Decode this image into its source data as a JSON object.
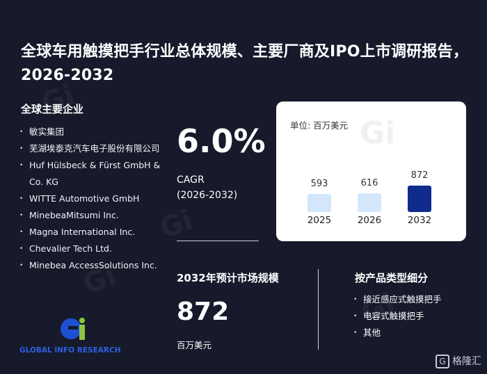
{
  "title": "全球车用触摸把手行业总体规模、主要厂商及IPO上市调研报告，2026-2032",
  "companies_section": {
    "heading": "全球主要企业",
    "items": [
      "敏实集团",
      "芜湖埃泰克汽车电子股份有限公司",
      "Huf Hülsbeck & Fürst GmbH & Co. KG",
      "WITTE Automotive GmbH",
      "MinebeaMitsumi Inc.",
      "Magna International Inc.",
      "Chevalier Tech Ltd.",
      "Minebea AccessSolutions Inc."
    ]
  },
  "cagr": {
    "value": "6.0%",
    "label": "CAGR",
    "period": "(2026-2032)"
  },
  "market_size": {
    "heading": "2032年预计市场规模",
    "value": "872",
    "unit": "百万美元"
  },
  "product_types": {
    "heading": "按产品类型细分",
    "items": [
      "接近感应式触摸把手",
      "电容式触摸把手",
      "其他"
    ]
  },
  "chart_data": {
    "type": "bar",
    "unit_label": "单位: 百万美元",
    "categories": [
      "2025",
      "2026",
      "2032"
    ],
    "values": [
      593,
      616,
      872
    ],
    "value_labels": [
      "593",
      "616",
      "872"
    ],
    "colors": [
      "#d3e6fb",
      "#d3e6fb",
      "#0f2b8c"
    ]
  },
  "logo": {
    "text": "GLOBAL INFO RESEARCH",
    "mark": "Gi"
  },
  "corner_brand": {
    "text": "格隆汇",
    "mark": "G"
  },
  "colors": {
    "background": "#161a2b",
    "highlight_bar": "#0f2b8c",
    "light_bar": "#d3e6fb"
  }
}
